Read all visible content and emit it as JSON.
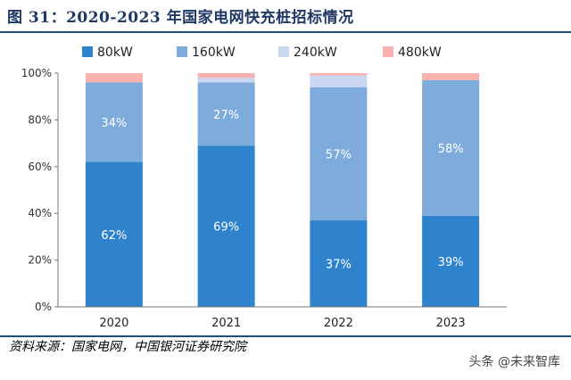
{
  "figure": {
    "title": "图 31：2020-2023 年国家电网快充桩招标情况",
    "source": "资料来源：国家电网，中国银河证券研究院",
    "watermark": "头条 @未来智库"
  },
  "chart_data": {
    "type": "bar",
    "stacked": true,
    "categories": [
      "2020",
      "2021",
      "2022",
      "2023"
    ],
    "series": [
      {
        "name": "80kW",
        "color": "#2e83cc",
        "values": [
          62,
          69,
          37,
          39
        ],
        "labels": [
          "62%",
          "69%",
          "37%",
          "39%"
        ]
      },
      {
        "name": "160kW",
        "color": "#7dacdc",
        "values": [
          34,
          27,
          57,
          58
        ],
        "labels": [
          "34%",
          "27%",
          "57%",
          "58%"
        ]
      },
      {
        "name": "240kW",
        "color": "#c9d7f1",
        "values": [
          0,
          2,
          5,
          0
        ]
      },
      {
        "name": "480kW",
        "color": "#f8b1ae",
        "values": [
          4,
          2,
          1,
          3
        ]
      }
    ],
    "y_ticks": [
      "0%",
      "20%",
      "40%",
      "60%",
      "80%",
      "100%"
    ],
    "ylim": [
      0,
      100
    ],
    "legend_position": "top",
    "grid": false
  }
}
